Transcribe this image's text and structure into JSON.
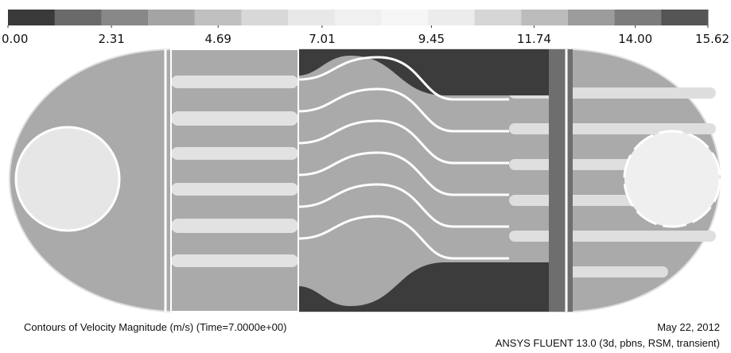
{
  "colorbar": {
    "range": [
      0,
      15.62
    ],
    "colors": [
      "#3a3a3a",
      "#6a6a6a",
      "#888888",
      "#a4a4a4",
      "#c0c0c0",
      "#d8d8d8",
      "#e8e8e8",
      "#f0f0f0",
      "#f6f6f6",
      "#ececec",
      "#d6d6d6",
      "#bcbcbc",
      "#9c9c9c",
      "#7c7c7c",
      "#555555"
    ],
    "ticks": [
      {
        "value": 0,
        "label": "0.00"
      },
      2.31,
      4.69,
      7.01,
      9.45,
      11.74,
      {
        "value": 14,
        "label": "14.00"
      },
      15.62
    ]
  },
  "caption": {
    "title": "Contours of Velocity Magnitude (m/s)  (Time=7.0000e+00)",
    "date": "May 22, 2012",
    "software": "ANSYS FLUENT 13.0 (3d, pbns, RSM, transient)"
  }
}
